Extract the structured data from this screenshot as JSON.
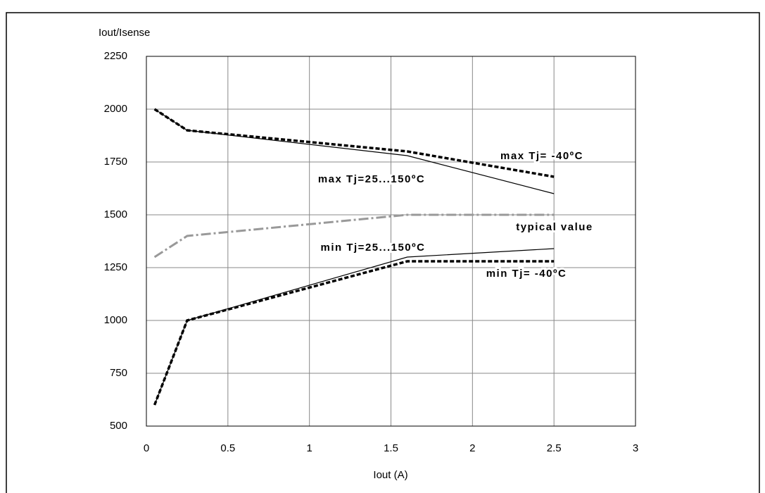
{
  "chart_data": {
    "type": "line",
    "ylabel": "Iout/Isense",
    "xlabel": "Iout (A)",
    "x": [
      0.05,
      0.25,
      1.6,
      2.5
    ],
    "series": [
      {
        "name": "max Tj= -40ºC",
        "color": "#000000",
        "style": "dashed",
        "values": [
          2000,
          1900,
          1800,
          1680
        ]
      },
      {
        "name": "max Tj=25...150ºC",
        "color": "#000000",
        "style": "solid",
        "values": [
          2000,
          1900,
          1780,
          1600
        ]
      },
      {
        "name": "typical value",
        "color": "#999999",
        "style": "dashdot",
        "values": [
          1300,
          1400,
          1500,
          1500
        ]
      },
      {
        "name": "min Tj=25...150ºC",
        "color": "#000000",
        "style": "solid",
        "values": [
          600,
          1000,
          1300,
          1340
        ]
      },
      {
        "name": "min Tj= -40ºC",
        "color": "#000000",
        "style": "dashed",
        "values": [
          600,
          1000,
          1280,
          1280
        ]
      }
    ],
    "xlim": [
      0,
      3
    ],
    "xticks": [
      0,
      0.5,
      1,
      1.5,
      2,
      2.5,
      3
    ],
    "ylim": [
      500,
      2250
    ],
    "yticks": [
      500,
      750,
      1000,
      1250,
      1500,
      1750,
      2000,
      2250
    ],
    "grid": true
  }
}
